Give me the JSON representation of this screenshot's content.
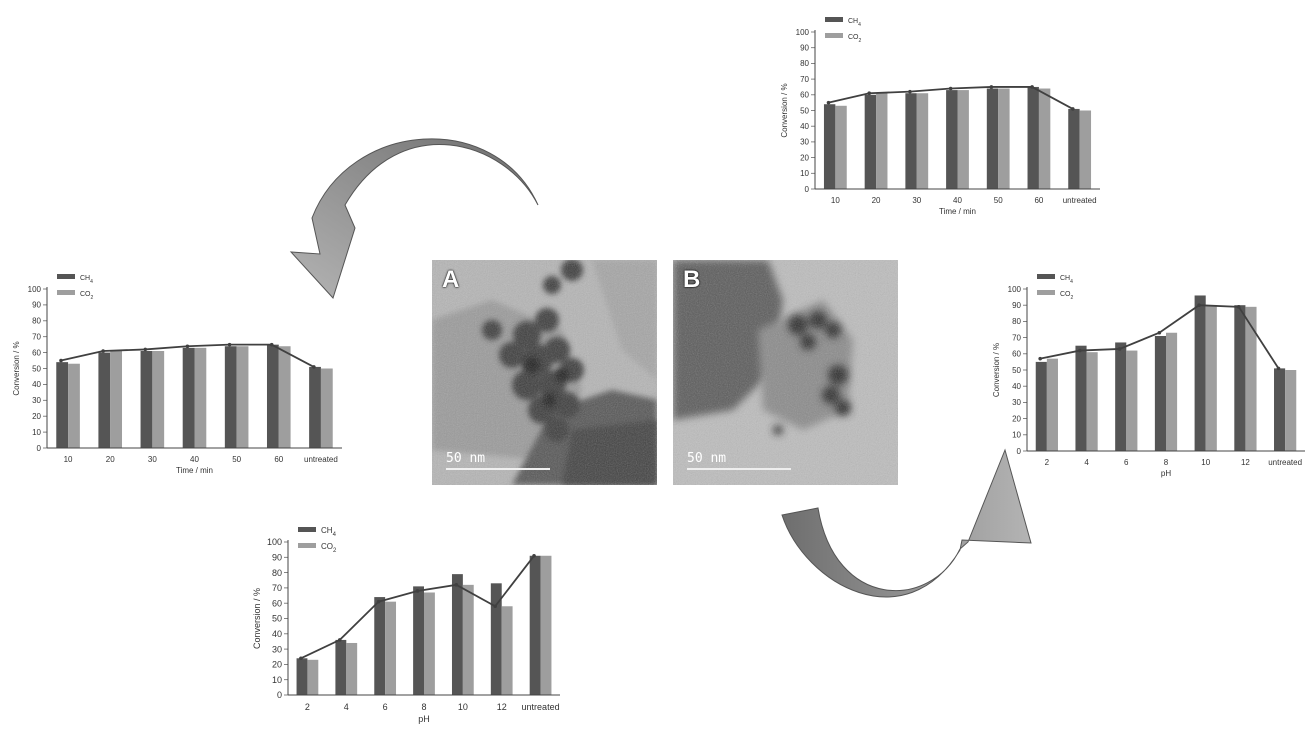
{
  "legend": {
    "ch4": "CH",
    "ch4_sub": "4",
    "co2": "CO",
    "co2_sub": "2"
  },
  "colors": {
    "ch4": "#555555",
    "co2": "#9e9e9e",
    "line": "#404040",
    "arrow_dark": "#6e6e6e",
    "arrow_light": "#b4b4b4"
  },
  "tem": {
    "a": {
      "label": "A",
      "scale": "50 nm"
    },
    "b": {
      "label": "B",
      "scale": "50 nm"
    }
  },
  "chart_data": [
    {
      "id": "time-top",
      "type": "bar",
      "categories": [
        "10",
        "20",
        "30",
        "40",
        "50",
        "60",
        "untreated"
      ],
      "series": [
        {
          "name": "CH4",
          "values": [
            54,
            60,
            61,
            63,
            64,
            65,
            51
          ]
        },
        {
          "name": "CO2",
          "values": [
            53,
            61,
            61,
            63,
            64,
            64,
            50
          ]
        }
      ],
      "line": [
        55,
        61,
        62,
        64,
        65,
        65,
        51
      ],
      "xlabel": "Time / min",
      "ylabel": "Conversion / %",
      "ylim": [
        0,
        100
      ],
      "yticks": [
        0,
        10,
        20,
        30,
        40,
        50,
        60,
        70,
        80,
        90,
        100
      ],
      "legend": "top-left"
    },
    {
      "id": "time-left",
      "type": "bar",
      "categories": [
        "10",
        "20",
        "30",
        "40",
        "50",
        "60",
        "untreated"
      ],
      "series": [
        {
          "name": "CH4",
          "values": [
            54,
            60,
            61,
            63,
            64,
            65,
            51
          ]
        },
        {
          "name": "CO2",
          "values": [
            53,
            61,
            61,
            63,
            64,
            64,
            50
          ]
        }
      ],
      "line": [
        55,
        61,
        62,
        64,
        65,
        65,
        51
      ],
      "xlabel": "Time / min",
      "ylabel": "Conversion / %",
      "ylim": [
        0,
        100
      ],
      "yticks": [
        0,
        10,
        20,
        30,
        40,
        50,
        60,
        70,
        80,
        90,
        100
      ],
      "legend": "top-left"
    },
    {
      "id": "ph-right",
      "type": "bar",
      "categories": [
        "2",
        "4",
        "6",
        "8",
        "10",
        "12",
        "untreated"
      ],
      "series": [
        {
          "name": "CH4",
          "values": [
            55,
            65,
            67,
            71,
            96,
            90,
            51
          ]
        },
        {
          "name": "CO2",
          "values": [
            57,
            61,
            62,
            73,
            90,
            89,
            50
          ]
        }
      ],
      "line": [
        57,
        62,
        63,
        73,
        90,
        89,
        51
      ],
      "xlabel": "pH",
      "ylabel": "Conversion / %",
      "ylim": [
        0,
        100
      ],
      "yticks": [
        0,
        10,
        20,
        30,
        40,
        50,
        60,
        70,
        80,
        90,
        100
      ],
      "legend": "top-left"
    },
    {
      "id": "ph-bottom",
      "type": "bar",
      "categories": [
        "2",
        "4",
        "6",
        "8",
        "10",
        "12",
        "untreated"
      ],
      "series": [
        {
          "name": "CH4",
          "values": [
            24,
            36,
            64,
            71,
            79,
            73,
            91
          ]
        },
        {
          "name": "CO2",
          "values": [
            23,
            34,
            61,
            67,
            72,
            58,
            91
          ]
        }
      ],
      "line": [
        24,
        36,
        61,
        68,
        72,
        58,
        91
      ],
      "xlabel": "pH",
      "ylabel": "Conversion / %",
      "ylim": [
        0,
        100
      ],
      "yticks": [
        0,
        10,
        20,
        30,
        40,
        50,
        60,
        70,
        80,
        90,
        100
      ],
      "legend": "top-left"
    }
  ]
}
